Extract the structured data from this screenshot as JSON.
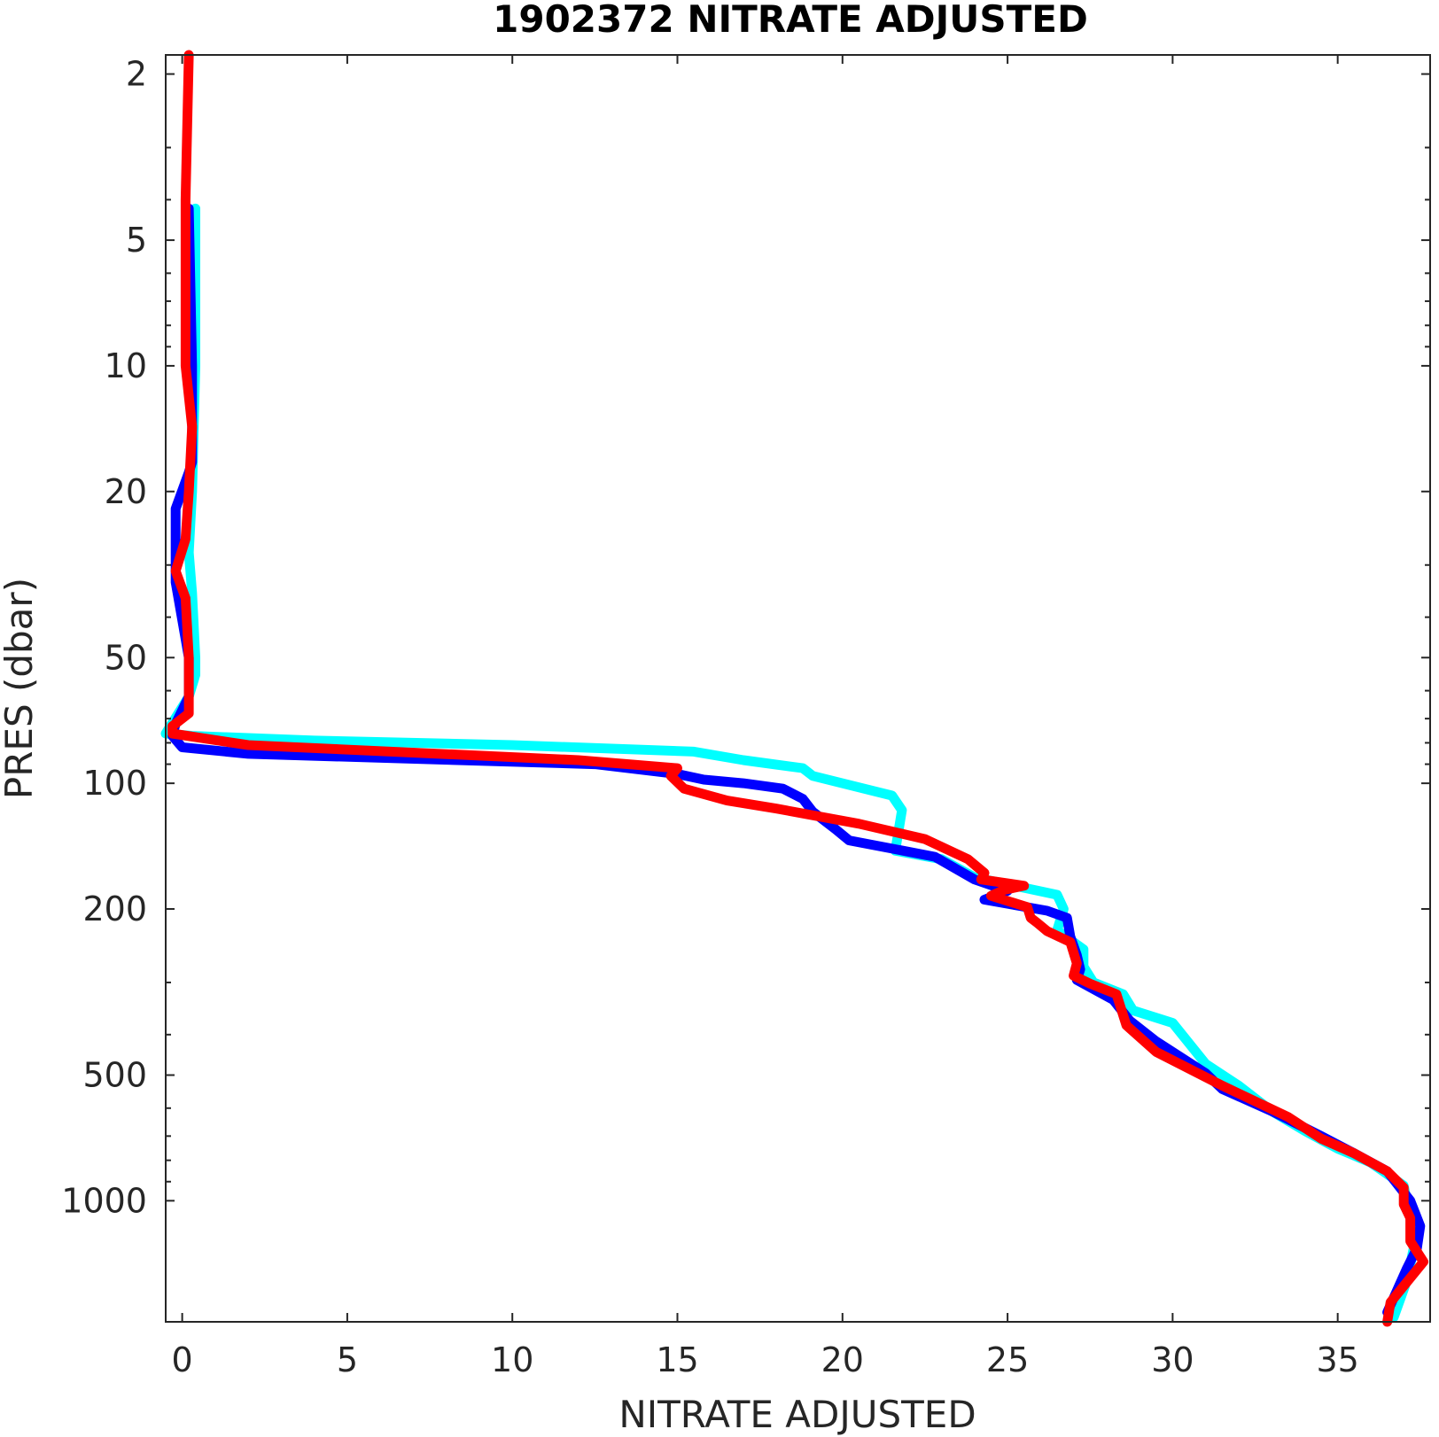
{
  "chart_data": {
    "type": "line",
    "title": "1902372  NITRATE ADJUSTED",
    "xlabel": "NITRATE ADJUSTED",
    "ylabel": "PRES (dbar)",
    "xlim": [
      -0.5,
      37.8
    ],
    "ylim": [
      1.8,
      1950
    ],
    "y_scale": "log",
    "y_reversed": true,
    "x_ticks": [
      0,
      5,
      10,
      15,
      20,
      25,
      30,
      35
    ],
    "x_tick_labels": [
      "0",
      "5",
      "10",
      "15",
      "20",
      "25",
      "30",
      "35"
    ],
    "y_ticks": [
      2,
      5,
      10,
      20,
      50,
      100,
      200,
      500,
      1000
    ],
    "y_tick_labels": [
      "2",
      "5",
      "10",
      "20",
      "50",
      "100",
      "200",
      "500",
      "1000"
    ],
    "grid": false,
    "series": [
      {
        "color": "#00ffff",
        "points": [
          [
            0.4,
            4.2
          ],
          [
            0.4,
            10
          ],
          [
            0.3,
            20
          ],
          [
            0.2,
            28
          ],
          [
            0.3,
            35
          ],
          [
            0.4,
            50
          ],
          [
            0.4,
            55
          ],
          [
            0.2,
            62
          ],
          [
            -0.5,
            76
          ],
          [
            0.3,
            77
          ],
          [
            4,
            79
          ],
          [
            10,
            81
          ],
          [
            15.5,
            84
          ],
          [
            17,
            88
          ],
          [
            18.8,
            92
          ],
          [
            19.1,
            96
          ],
          [
            21.5,
            107
          ],
          [
            21.8,
            116
          ],
          [
            21.6,
            145
          ],
          [
            23,
            152
          ],
          [
            24,
            168
          ],
          [
            26.5,
            185
          ],
          [
            26.7,
            200
          ],
          [
            26.5,
            225
          ],
          [
            27.3,
            250
          ],
          [
            27.3,
            275
          ],
          [
            27.6,
            300
          ],
          [
            28.5,
            320
          ],
          [
            28.8,
            350
          ],
          [
            30,
            375
          ],
          [
            31,
            470
          ],
          [
            32,
            530
          ],
          [
            33,
            610
          ],
          [
            34,
            680
          ],
          [
            35,
            750
          ],
          [
            36,
            810
          ],
          [
            37,
            920
          ],
          [
            37.2,
            1100
          ],
          [
            37.3,
            1300
          ],
          [
            37.1,
            1550
          ],
          [
            36.7,
            1900
          ]
        ]
      },
      {
        "color": "#0000ff",
        "points": [
          [
            0.2,
            4.2
          ],
          [
            0.3,
            10
          ],
          [
            0.3,
            17
          ],
          [
            0.2,
            18
          ],
          [
            -0.2,
            22
          ],
          [
            -0.2,
            33
          ],
          [
            0.2,
            50
          ],
          [
            0.2,
            58
          ],
          [
            0.2,
            62
          ],
          [
            -0.2,
            72
          ],
          [
            -0.3,
            77
          ],
          [
            0,
            82
          ],
          [
            2,
            85
          ],
          [
            12.5,
            90
          ],
          [
            15,
            95
          ],
          [
            15.8,
            98
          ],
          [
            17,
            100
          ],
          [
            18.2,
            103
          ],
          [
            18.8,
            109
          ],
          [
            19.1,
            117
          ],
          [
            19.8,
            129
          ],
          [
            20.2,
            137
          ],
          [
            22.8,
            150
          ],
          [
            24,
            170
          ],
          [
            25,
            181
          ],
          [
            24.3,
            190
          ],
          [
            26.2,
            202
          ],
          [
            26.8,
            210
          ],
          [
            26.9,
            233
          ],
          [
            27.1,
            258
          ],
          [
            27.2,
            279
          ],
          [
            27.1,
            296
          ],
          [
            28.2,
            330
          ],
          [
            28.7,
            370
          ],
          [
            29.5,
            415
          ],
          [
            31,
            495
          ],
          [
            31.5,
            540
          ],
          [
            33,
            610
          ],
          [
            34.5,
            700
          ],
          [
            35.5,
            770
          ],
          [
            36.5,
            850
          ],
          [
            37.2,
            1000
          ],
          [
            37.5,
            1150
          ],
          [
            37.4,
            1300
          ],
          [
            37.1,
            1450
          ],
          [
            36.5,
            1850
          ]
        ]
      },
      {
        "color": "#ff0000",
        "points": [
          [
            0.2,
            1.8
          ],
          [
            0.1,
            4
          ],
          [
            0.1,
            10
          ],
          [
            0.3,
            14
          ],
          [
            0.2,
            20
          ],
          [
            0.1,
            26
          ],
          [
            -0.2,
            31
          ],
          [
            0.1,
            36
          ],
          [
            0.2,
            50
          ],
          [
            0.2,
            68
          ],
          [
            -0.3,
            73
          ],
          [
            -0.3,
            76
          ],
          [
            2,
            81
          ],
          [
            12,
            88
          ],
          [
            15,
            92
          ],
          [
            14.8,
            96
          ],
          [
            15.2,
            103
          ],
          [
            16.5,
            110
          ],
          [
            18,
            115
          ],
          [
            20.5,
            125
          ],
          [
            22.5,
            136
          ],
          [
            23.8,
            152
          ],
          [
            24.3,
            164
          ],
          [
            24.2,
            170
          ],
          [
            25.5,
            176
          ],
          [
            24.9,
            180
          ],
          [
            24.5,
            186
          ],
          [
            25.6,
            198
          ],
          [
            25.7,
            210
          ],
          [
            25.9,
            216
          ],
          [
            26.2,
            226
          ],
          [
            26.9,
            240
          ],
          [
            27.1,
            270
          ],
          [
            27,
            289
          ],
          [
            27.5,
            302
          ],
          [
            28.3,
            320
          ],
          [
            28.6,
            380
          ],
          [
            29.5,
            440
          ],
          [
            31.5,
            530
          ],
          [
            33.5,
            630
          ],
          [
            34.5,
            710
          ],
          [
            35.5,
            770
          ],
          [
            36.5,
            850
          ],
          [
            37,
            930
          ],
          [
            37,
            1020
          ],
          [
            37.2,
            1100
          ],
          [
            37.2,
            1250
          ],
          [
            37.6,
            1400
          ],
          [
            37,
            1600
          ],
          [
            36.6,
            1750
          ],
          [
            36.5,
            1950
          ]
        ]
      }
    ]
  }
}
